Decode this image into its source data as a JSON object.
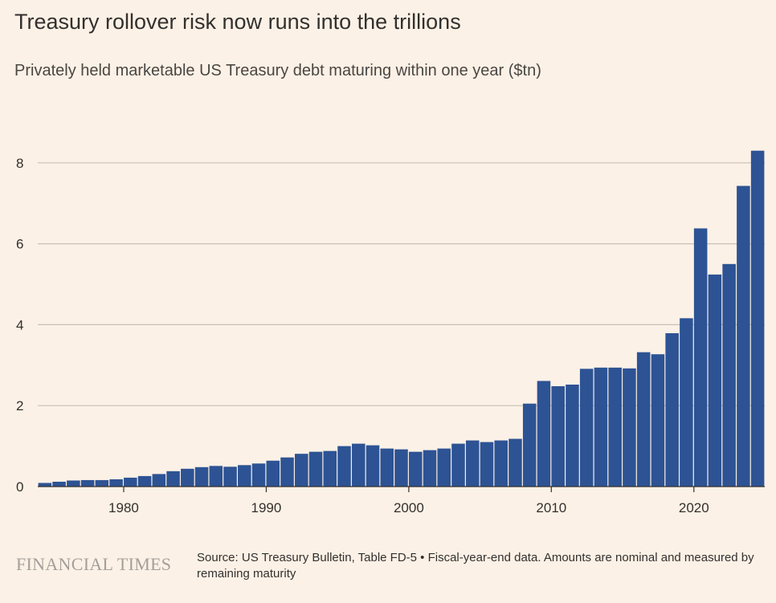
{
  "header": {
    "title": "Treasury rollover risk now runs into the trillions",
    "subtitle": "Privately held marketable US Treasury debt maturing within one year ($tn)"
  },
  "footer": {
    "logo": "FINANCIAL TIMES",
    "source": "Source: US Treasury Bulletin, Table FD-5 • Fiscal-year-end data. Amounts are nominal and measured by remaining maturity"
  },
  "colors": {
    "background": "#fcf1e6",
    "bar": "#2d5394",
    "grid": "#c9bfb6",
    "axis": "#33302e"
  },
  "chart_data": {
    "type": "bar",
    "title": "Treasury rollover risk now runs into the trillions",
    "subtitle": "Privately held marketable US Treasury debt maturing within one year ($tn)",
    "ylim": [
      0,
      8.5
    ],
    "yticks": [
      0,
      2,
      4,
      6,
      8
    ],
    "xticks": [
      1980,
      1990,
      2000,
      2010,
      2020
    ],
    "grid": true,
    "categories": [
      1974,
      1975,
      1976,
      1977,
      1978,
      1979,
      1980,
      1981,
      1982,
      1983,
      1984,
      1985,
      1986,
      1987,
      1988,
      1989,
      1990,
      1991,
      1992,
      1993,
      1994,
      1995,
      1996,
      1997,
      1998,
      1999,
      2000,
      2001,
      2002,
      2003,
      2004,
      2005,
      2006,
      2007,
      2008,
      2009,
      2010,
      2011,
      2012,
      2013,
      2014,
      2015,
      2016,
      2017,
      2018,
      2019,
      2020,
      2021,
      2022,
      2023,
      2024
    ],
    "values": [
      0.09,
      0.12,
      0.15,
      0.16,
      0.16,
      0.18,
      0.22,
      0.26,
      0.31,
      0.38,
      0.44,
      0.48,
      0.51,
      0.49,
      0.53,
      0.57,
      0.64,
      0.72,
      0.81,
      0.86,
      0.88,
      1.0,
      1.06,
      1.02,
      0.94,
      0.92,
      0.86,
      0.9,
      0.94,
      1.06,
      1.14,
      1.1,
      1.14,
      1.18,
      2.05,
      2.61,
      2.48,
      2.52,
      2.91,
      2.94,
      2.94,
      2.92,
      3.32,
      3.27,
      3.79,
      4.16,
      6.38,
      5.24,
      5.5,
      7.43,
      8.3
    ]
  }
}
